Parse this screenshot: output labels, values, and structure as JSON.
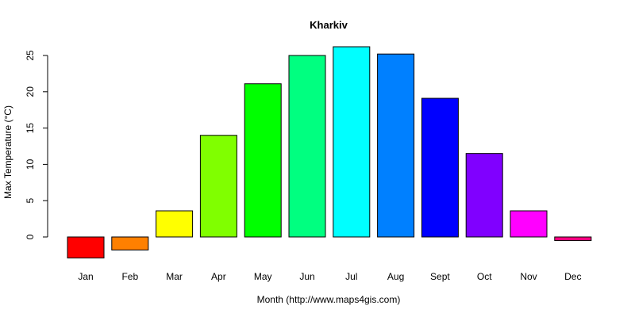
{
  "chart_data": {
    "type": "bar",
    "title": "Kharkiv",
    "xlabel": "Month (http://www.maps4gis.com)",
    "ylabel": "Max Temperature (°C)",
    "categories": [
      "Jan",
      "Feb",
      "Mar",
      "Apr",
      "May",
      "Jun",
      "Jul",
      "Aug",
      "Sept",
      "Oct",
      "Nov",
      "Dec"
    ],
    "values": [
      -2.9,
      -1.8,
      3.6,
      14.0,
      21.1,
      25.0,
      26.2,
      25.2,
      19.1,
      11.5,
      3.6,
      -0.5
    ],
    "colors": [
      "#FF0000",
      "#FF8000",
      "#FFFF00",
      "#80FF00",
      "#00FF00",
      "#00FF80",
      "#00FFFF",
      "#0080FF",
      "#0000FF",
      "#8000FF",
      "#FF00FF",
      "#FF0080"
    ],
    "yticks": [
      0,
      5,
      10,
      15,
      20,
      25
    ],
    "ylim": [
      -3.5,
      27
    ],
    "grid": false,
    "legend": "none"
  }
}
